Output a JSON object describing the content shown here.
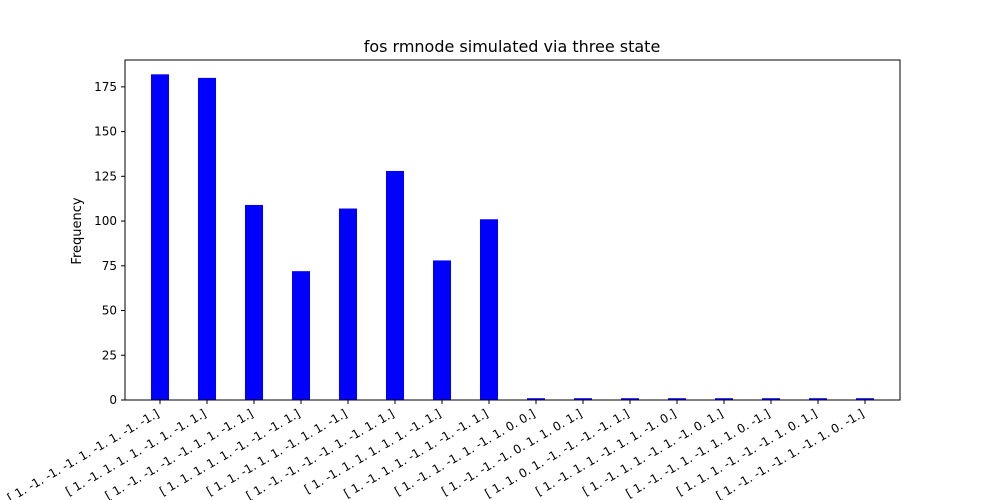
{
  "chart_data": {
    "type": "bar",
    "title": "fos rmnode simulated via three state",
    "xlabel": "",
    "ylabel": "Frequency",
    "ylim": [
      0,
      190
    ],
    "yticks": [
      0,
      25,
      50,
      75,
      100,
      125,
      150,
      175
    ],
    "grid": false,
    "legend": "none",
    "bar_color": "#0000ff",
    "categories": [
      "[ 1. -1. -1. -1. 1. -1. 1. -1. -1.]",
      "[ 1. -1. 1. 1. 1. -1. 1. -1. 1.]",
      "[ 1. -1. -1. -1. -1. 1. 1. -1. 1.]",
      "[ 1. 1. 1. 1. 1. -1. -1. -1. 1.]",
      "[ 1. 1. -1. 1. 1. -1. 1. 1. -1.]",
      "[ 1. -1. -1. -1. -1. 1. -1. 1. 1.]",
      "[ 1. -1. 1. 1. 1. 1. 1. -1. 1.]",
      "[ 1. -1. 1. 1. -1. 1. -1. -1. 1.]",
      "[ 1. -1. 1. -1. 1. -1. 1. 0. 0.]",
      "[ 1. -1. -1. -1. 0. 1. 1. 0. 1.]",
      "[ 1. 1. 0. 1. -1. -1. -1. -1. 1.]",
      "[ 1. -1. 1. 1. -1. 1. 1. -1. 0.]",
      "[ 1. -1. 1. 1. -1. 1. -1. 0. 1.]",
      "[ 1. -1. -1. 1. -1. 1. 1. 0. -1.]",
      "[ 1. 1. 1. -1. -1. -1. 1. 0. 1.]",
      "[ 1. -1. -1. -1. 1. -1. 1. 0. -1.]"
    ],
    "values": [
      182,
      180,
      109,
      72,
      107,
      128,
      78,
      101,
      1,
      1,
      1,
      1,
      1,
      1,
      1,
      1
    ]
  }
}
